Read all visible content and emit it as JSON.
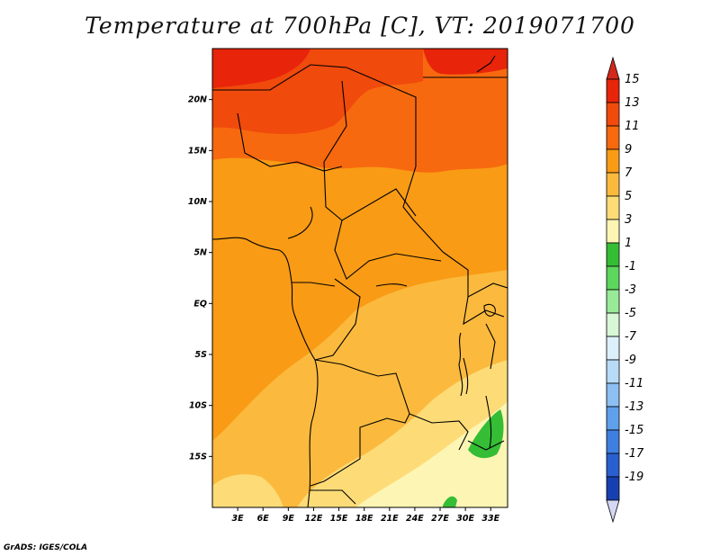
{
  "title": "Temperature at 700hPa [C], VT: 2019071700",
  "credit": "GrADS: IGES/COLA",
  "map": {
    "field": "Temperature at 700hPa",
    "units": "C",
    "valid_time": "2019071700",
    "lat_range": [
      -20,
      25
    ],
    "lon_range": [
      0,
      35
    ],
    "lat_ticks": [
      {
        "value": 20,
        "label": "20N"
      },
      {
        "value": 15,
        "label": "15N"
      },
      {
        "value": 10,
        "label": "10N"
      },
      {
        "value": 5,
        "label": "5N"
      },
      {
        "value": 0,
        "label": "EQ"
      },
      {
        "value": -5,
        "label": "5S"
      },
      {
        "value": -10,
        "label": "10S"
      },
      {
        "value": -15,
        "label": "15S"
      }
    ],
    "lon_ticks": [
      {
        "value": 3,
        "label": "3E"
      },
      {
        "value": 6,
        "label": "6E"
      },
      {
        "value": 9,
        "label": "9E"
      },
      {
        "value": 12,
        "label": "12E"
      },
      {
        "value": 15,
        "label": "15E"
      },
      {
        "value": 18,
        "label": "18E"
      },
      {
        "value": 21,
        "label": "21E"
      },
      {
        "value": 24,
        "label": "24E"
      },
      {
        "value": 27,
        "label": "27E"
      },
      {
        "value": 30,
        "label": "30E"
      },
      {
        "value": 33,
        "label": "33E"
      }
    ]
  },
  "colorbar": {
    "levels": [
      {
        "label": "15",
        "color": "#e8240a"
      },
      {
        "label": "13",
        "color": "#f04a0c"
      },
      {
        "label": "11",
        "color": "#f7690f"
      },
      {
        "label": "9",
        "color": "#f99b15"
      },
      {
        "label": "7",
        "color": "#fbba3e"
      },
      {
        "label": "5",
        "color": "#fddc78"
      },
      {
        "label": "3",
        "color": "#fdf5b4"
      },
      {
        "label": "1",
        "color": "#36bd36"
      },
      {
        "label": "-1",
        "color": "#5ed65e"
      },
      {
        "label": "-3",
        "color": "#98ea98"
      },
      {
        "label": "-5",
        "color": "#d7f7d7"
      },
      {
        "label": "-7",
        "color": "#dcf0fb"
      },
      {
        "label": "-9",
        "color": "#b8dbf7"
      },
      {
        "label": "-11",
        "color": "#8dbff2"
      },
      {
        "label": "-13",
        "color": "#5fa0eb"
      },
      {
        "label": "-15",
        "color": "#3f7fe0"
      },
      {
        "label": "-17",
        "color": "#2a5fd0"
      },
      {
        "label": "-19",
        "color": "#163fb0"
      }
    ],
    "top_color": "#d4281a",
    "bottom_color": "#061860",
    "below_color": "#d5d8f5"
  }
}
